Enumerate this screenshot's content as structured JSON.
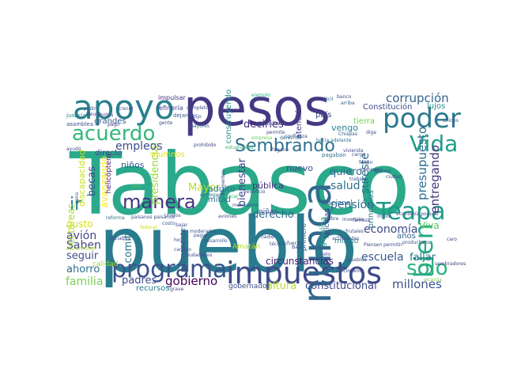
{
  "words": [
    {
      "text": "Tabasco",
      "color": "#2aa98b"
    },
    {
      "text": "pueblo",
      "color": "#297b8e"
    },
    {
      "text": "pesos",
      "color": "#443983"
    },
    {
      "text": "impuestos",
      "color": "#3e4989"
    },
    {
      "text": "apoyo",
      "color": "#277f8e"
    },
    {
      "text": "programa",
      "color": "#3b528b"
    },
    {
      "text": "nunca",
      "color": "#31688e"
    },
    {
      "text": "Vida",
      "color": "#1f9e89"
    },
    {
      "text": "poder",
      "color": "#2a788e"
    },
    {
      "text": "Teapa",
      "color": "#1f9a8a"
    },
    {
      "text": "bien",
      "color": "#23a983"
    },
    {
      "text": "sólo",
      "color": "#2db27d"
    },
    {
      "text": "manera",
      "color": "#46337e"
    },
    {
      "text": "acuerdo",
      "color": "#35b779"
    },
    {
      "text": "Sembrando",
      "color": "#2c728e"
    },
    {
      "text": "ir",
      "color": "#26828e"
    },
    {
      "text": "corrupción",
      "color": "#33638d"
    },
    {
      "text": "presupuesto",
      "color": "#2e6d8e"
    },
    {
      "text": "presidencial",
      "color": "#9bd93c"
    },
    {
      "text": "becas",
      "color": "#3b528b"
    },
    {
      "text": "gobierno",
      "color": "#440154"
    },
    {
      "text": "familia",
      "color": "#7ad151"
    },
    {
      "text": "padres",
      "color": "#3e4a89"
    },
    {
      "text": "millones",
      "color": "#3b528b"
    },
    {
      "text": "escuela",
      "color": "#38588c"
    },
    {
      "text": "pensión",
      "color": "#31688e"
    },
    {
      "text": "salud",
      "color": "#2c728e"
    },
    {
      "text": "entregando",
      "color": "#453781"
    },
    {
      "text": "empleos",
      "color": "#3e4989"
    },
    {
      "text": "comité",
      "color": "#287c8e"
    },
    {
      "text": "avión",
      "color": "#404688"
    },
    {
      "text": "Saben",
      "color": "#3f4788"
    },
    {
      "text": "seguir",
      "color": "#3d4d8a"
    },
    {
      "text": "ahorro",
      "color": "#2d708e"
    },
    {
      "text": "derecho",
      "color": "#31688e"
    },
    {
      "text": "economía",
      "color": "#3e4a89"
    },
    {
      "text": "Viva",
      "color": "#5ec962"
    },
    {
      "text": "fallar",
      "color": "#2b758e"
    },
    {
      "text": "quiero",
      "color": "#31688e"
    },
    {
      "text": "bienestar",
      "color": "#3f4889"
    },
    {
      "text": "sureste",
      "color": "#2e6e8e"
    },
    {
      "text": "altura",
      "color": "#b8de29"
    },
    {
      "text": "constitucional",
      "color": "#3e4989"
    },
    {
      "text": "circunstancias",
      "color": "#481f70"
    },
    {
      "text": "decirles",
      "color": "#482878"
    },
    {
      "text": "avanzando",
      "color": "#fde725"
    },
    {
      "text": "Mayor",
      "color": "#b5de2b"
    },
    {
      "text": "hectáreas",
      "color": "#addc30"
    },
    {
      "text": "gusto",
      "color": "#d2e21b"
    },
    {
      "text": "niños",
      "color": "#375b8d"
    },
    {
      "text": "nuevo",
      "color": "#3a538b"
    },
    {
      "text": "pública",
      "color": "#46307e"
    },
    {
      "text": "adulto",
      "color": "#2a778e"
    },
    {
      "text": "mitad",
      "color": "#2c718e"
    },
    {
      "text": "vengo",
      "color": "#27808e"
    },
    {
      "text": "principios",
      "color": "#2a788e"
    },
    {
      "text": "años",
      "color": "#33638d"
    },
    {
      "text": "tierra",
      "color": "#74d055"
    },
    {
      "text": "Constitución",
      "color": "#3e4c8a"
    },
    {
      "text": "lujos",
      "color": "#228d8d"
    },
    {
      "text": "país",
      "color": "#3e4a89"
    },
    {
      "text": "atención",
      "color": "#424086"
    },
    {
      "text": "mismo",
      "color": "#26818e"
    },
    {
      "text": "nacional",
      "color": "#31678e"
    },
    {
      "text": "gasolina",
      "color": "#25ab82"
    },
    {
      "text": "primero",
      "color": "#2f6c8e"
    },
    {
      "text": "felicidad",
      "color": "#3b528b"
    },
    {
      "text": "grandes",
      "color": "#375a8c"
    },
    {
      "text": "calidad",
      "color": "#a2da37"
    },
    {
      "text": "directo",
      "color": "#3e4a89"
    },
    {
      "text": "alumnos",
      "color": "#dae319"
    },
    {
      "text": "helicóptero",
      "color": "#482576"
    },
    {
      "text": "discapacidad",
      "color": "#c8e020"
    },
    {
      "text": "permanente",
      "color": "#3c4f8a"
    },
    {
      "text": "recursos",
      "color": "#277e8e"
    },
    {
      "text": "gobernador",
      "color": "#3d4e8a"
    },
    {
      "text": "niñas",
      "color": "#3e4c8a"
    },
    {
      "text": "Amatán",
      "color": "#bddf26"
    },
    {
      "text": "construyendo",
      "color": "#20928c"
    },
    {
      "text": "refinería",
      "color": "#3f4788"
    },
    {
      "text": "impulsar",
      "color": "#472f7d"
    },
    {
      "text": "justicia",
      "color": "#26828e"
    },
    {
      "text": "asamblea",
      "color": "#3b528b"
    },
    {
      "text": "dejaron",
      "color": "#39568c"
    },
    {
      "text": "ayudó",
      "color": "#3e4989"
    },
    {
      "text": "cinco",
      "color": "#58c765"
    },
    {
      "text": "pago",
      "color": "#463480"
    },
    {
      "text": "mayores",
      "color": "#33638d"
    },
    {
      "text": "prohibido",
      "color": "#3f4889"
    },
    {
      "text": "pagaban",
      "color": "#2c718e"
    },
    {
      "text": "Chiapas",
      "color": "#38588c"
    },
    {
      "text": "pobre",
      "color": "#39568c"
    },
    {
      "text": "frutales",
      "color": "#3b528b"
    },
    {
      "text": "Piensen",
      "color": "#3e4a89"
    },
    {
      "text": "paisanos paisanos",
      "color": "#3b528b"
    },
    {
      "text": "reforma",
      "color": "#2c728e"
    },
    {
      "text": "iniciativa",
      "color": "#3f4788"
    },
    {
      "text": "árboles",
      "color": "#b4de2c"
    },
    {
      "text": "alcanza",
      "color": "#7fd34e"
    },
    {
      "text": "sembradores",
      "color": "#3f4788"
    },
    {
      "text": "banco",
      "color": "#3e4a89"
    },
    {
      "text": "ejemplo",
      "color": "#2db27d"
    },
    {
      "text": "completo",
      "color": "#3e4a89"
    },
    {
      "text": "dijo",
      "color": "#3b528b"
    },
    {
      "text": "arriba",
      "color": "#33638d"
    },
    {
      "text": "sano",
      "color": "#3e4989"
    },
    {
      "text": "entregado",
      "color": "#2c728e"
    },
    {
      "text": "elementos",
      "color": "#3d4e8a"
    },
    {
      "text": "estudiantes",
      "color": "#35b779"
    },
    {
      "text": "empresa",
      "color": "#6ece58"
    },
    {
      "text": "confianza",
      "color": "#3b528b"
    },
    {
      "text": "hacia adelante",
      "color": "#2c728e"
    },
    {
      "text": "Hacer",
      "color": "#35b779"
    },
    {
      "text": "grave",
      "color": "#3e4989"
    },
    {
      "text": "actividades",
      "color": "#3b528b"
    },
    {
      "text": "permitir",
      "color": "#3f4788"
    },
    {
      "text": "costo",
      "color": "#38588c"
    },
    {
      "text": "Unidos",
      "color": "#39568c"
    },
    {
      "text": "bajar",
      "color": "#3e4989"
    },
    {
      "text": "federal",
      "color": "#c2df23"
    },
    {
      "text": "ciudad",
      "color": "#3e4a89"
    },
    {
      "text": "Bienes",
      "color": "#3b528b"
    },
    {
      "text": "faltan",
      "color": "#3f4788"
    },
    {
      "text": "gente",
      "color": "#3e4989"
    },
    {
      "text": "moderados",
      "color": "#38588c"
    },
    {
      "text": "desarrollo",
      "color": "#3b528b"
    },
    {
      "text": "fuerza",
      "color": "#3e4a89"
    },
    {
      "text": "pagar",
      "color": "#3b528b"
    },
    {
      "text": "derechos",
      "color": "#2c728e"
    },
    {
      "text": "Pagano",
      "color": "#3e4989"
    },
    {
      "text": "beneficio",
      "color": "#3e4a89"
    },
    {
      "text": "mexicanos",
      "color": "#39568c"
    },
    {
      "text": "permite",
      "color": "#3e4989"
    },
    {
      "text": "atendidos",
      "color": "#3b528b"
    },
    {
      "text": "vivienda",
      "color": "#3f4788"
    },
    {
      "text": "aviones",
      "color": "#3e4a89"
    },
    {
      "text": "fácil",
      "color": "#2c728e"
    },
    {
      "text": "diga",
      "color": "#3e4989"
    },
    {
      "text": "cargo",
      "color": "#3b528b"
    },
    {
      "text": "mensajes",
      "color": "#3e4a89"
    },
    {
      "text": "trabajo",
      "color": "#38588c"
    },
    {
      "text": "inversión",
      "color": "#3e4989"
    },
    {
      "text": "famosa",
      "color": "#3e4a89"
    },
    {
      "text": "millón",
      "color": "#3b528b"
    },
    {
      "text": "economía popular",
      "color": "#3e4989"
    },
    {
      "text": "productivos",
      "color": "#3b528b"
    },
    {
      "text": "pueblos",
      "color": "#3e4a89"
    },
    {
      "text": "crecimiento",
      "color": "#3f4788"
    },
    {
      "text": "cielo",
      "color": "#3e4989"
    },
    {
      "text": "Bajo",
      "color": "#3e4a89"
    },
    {
      "text": "técnico",
      "color": "#3b528b"
    },
    {
      "text": "nadie",
      "color": "#3e4989"
    },
    {
      "text": "hoy",
      "color": "#3e4a89"
    },
    {
      "text": "cambio",
      "color": "#3b528b"
    },
    {
      "text": "ciudadanos",
      "color": "#3e4989"
    },
    {
      "text": "crecer",
      "color": "#3e4a89"
    },
    {
      "text": "pedir",
      "color": "#3b528b"
    },
    {
      "text": "deuda",
      "color": "#3e4989"
    },
    {
      "text": "juntos",
      "color": "#3e4a89"
    },
    {
      "text": "unidos",
      "color": "#3b528b"
    },
    {
      "text": "caro",
      "color": "#3e4989"
    }
  ]
}
